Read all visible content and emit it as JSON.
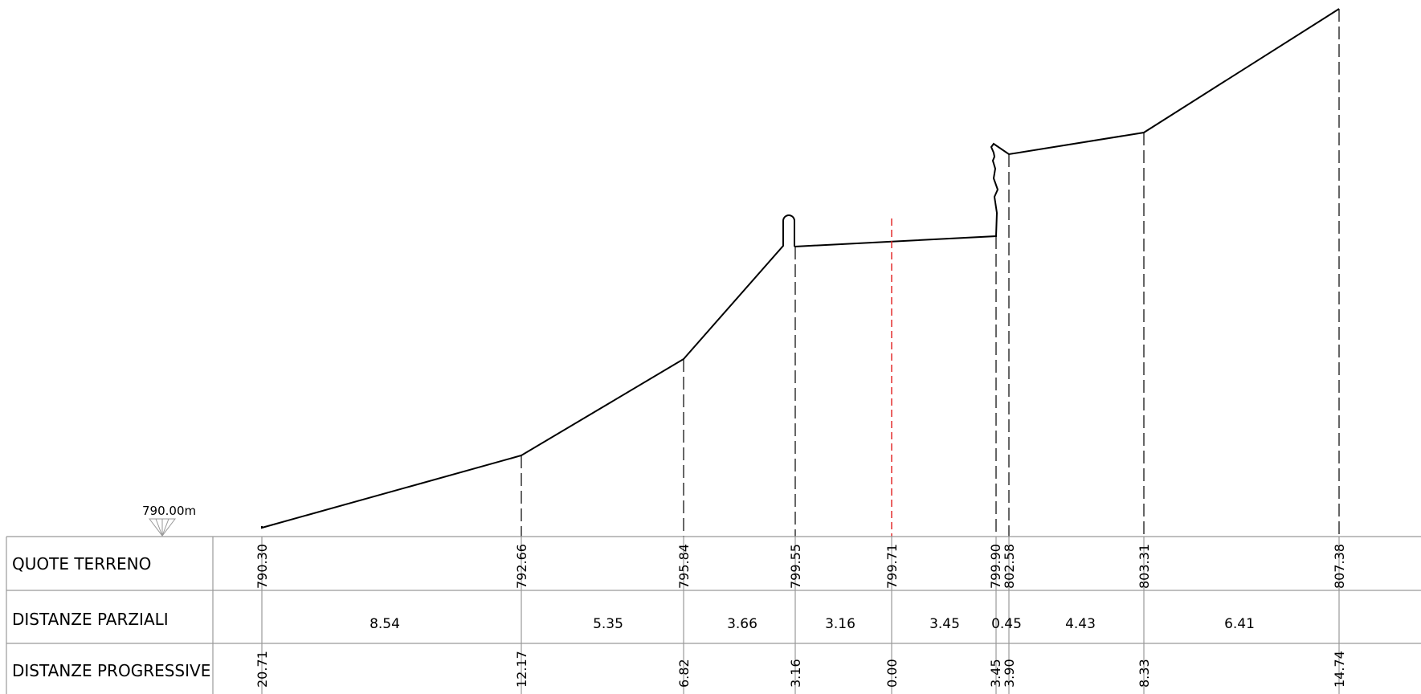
{
  "datum": {
    "label": "790.00m"
  },
  "rows": {
    "quote": "QUOTE TERRENO",
    "parziali": "DISTANZE PARZIALI",
    "progressive": "DISTANZE PROGRESSIVE"
  },
  "quote_values": [
    "790.30",
    "792.66",
    "795.84",
    "799.55",
    "799.71",
    "799.90",
    "802.58",
    "803.31",
    "807.38"
  ],
  "partial_values": [
    "8.54",
    "5.35",
    "3.66",
    "3.16",
    "3.45",
    "0.45",
    "4.43",
    "6.41"
  ],
  "progressive_values": [
    "20.71",
    "12.17",
    "6.82",
    "3.16",
    "0.00",
    "3.45",
    "3.90",
    "8.33",
    "14.74"
  ],
  "colors": {
    "axis_line": "#e02020",
    "profile": "#000000",
    "grid": "#999999"
  }
}
